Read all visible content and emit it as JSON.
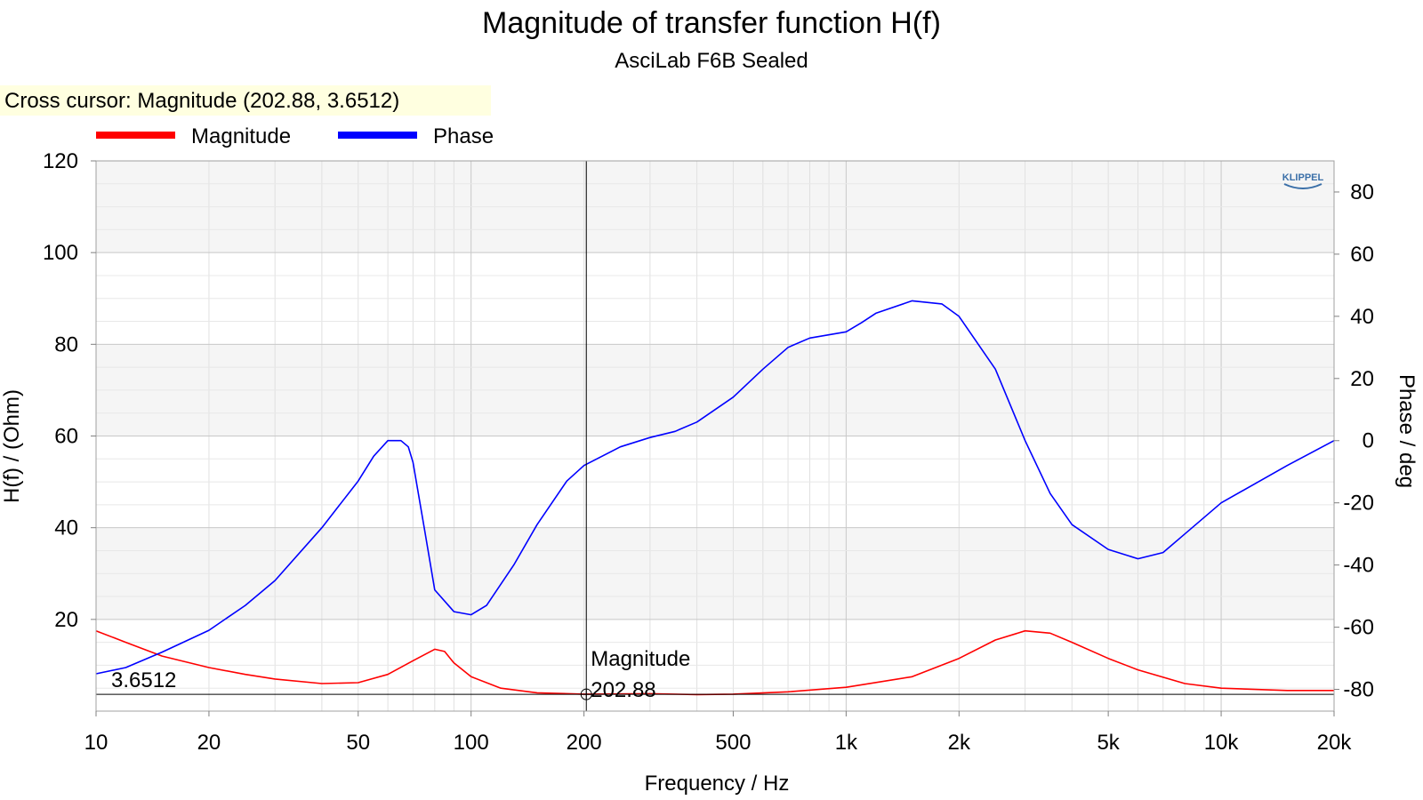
{
  "chart_data": {
    "type": "line",
    "title": "Magnitude of transfer function H(f)",
    "subtitle": "AsciLab F6B Sealed",
    "xlabel": "Frequency / Hz",
    "ylabel": "H(f) / (Ohm)",
    "y2label": "Phase / deg",
    "x_scale": "log",
    "xlim": [
      10,
      20000
    ],
    "ylim": [
      0,
      120
    ],
    "y2lim": [
      -87,
      90
    ],
    "x_ticks": [
      10,
      20,
      50,
      100,
      200,
      500,
      1000,
      2000,
      5000,
      10000,
      20000
    ],
    "x_tick_labels": [
      "10",
      "20",
      "50",
      "100",
      "200",
      "500",
      "1k",
      "2k",
      "5k",
      "10k",
      "20k"
    ],
    "y_ticks": [
      20,
      40,
      60,
      80,
      100,
      120
    ],
    "y_tick_labels": [
      "20",
      "40",
      "60",
      "80",
      "100",
      "120"
    ],
    "y2_ticks": [
      80,
      60,
      40,
      20,
      0,
      -20,
      -40,
      -60,
      -80
    ],
    "y2_tick_labels": [
      "80",
      "60",
      "40",
      "20",
      "0",
      "-20",
      "-40",
      "-60",
      "-80"
    ],
    "grid": true,
    "legend_position": "top-left",
    "series": [
      {
        "name": "Magnitude",
        "color": "#ff0000",
        "axis": "left",
        "x": [
          10,
          12,
          15,
          20,
          25,
          30,
          40,
          50,
          60,
          70,
          80,
          85,
          90,
          100,
          120,
          150,
          200,
          300,
          400,
          500,
          700,
          1000,
          1500,
          2000,
          2500,
          3000,
          3500,
          4000,
          5000,
          6000,
          8000,
          10000,
          15000,
          20000
        ],
        "y": [
          17.5,
          15,
          12,
          9.5,
          8,
          7,
          6,
          6.2,
          8,
          11,
          13.5,
          13,
          10.5,
          7.5,
          5,
          4,
          3.7,
          3.8,
          3.6,
          3.7,
          4.2,
          5.2,
          7.5,
          11.5,
          15.5,
          17.5,
          17,
          15,
          11.5,
          9,
          6,
          5,
          4.5,
          4.5
        ]
      },
      {
        "name": "Phase",
        "color": "#0000ff",
        "axis": "right",
        "x": [
          10,
          12,
          15,
          20,
          25,
          30,
          40,
          50,
          55,
          60,
          65,
          68,
          70,
          75,
          80,
          90,
          100,
          110,
          130,
          150,
          180,
          200,
          250,
          300,
          350,
          400,
          500,
          600,
          700,
          800,
          1000,
          1100,
          1200,
          1500,
          1800,
          2000,
          2500,
          3000,
          3500,
          4000,
          5000,
          6000,
          7000,
          8000,
          10000,
          15000,
          20000
        ],
        "y": [
          -75,
          -73,
          -68,
          -61,
          -53,
          -45,
          -28,
          -13,
          -5,
          0,
          0,
          -2,
          -7,
          -28,
          -48,
          -55,
          -56,
          -53,
          -40,
          -27,
          -13,
          -8,
          -2,
          1,
          3,
          6,
          14,
          23,
          30,
          33,
          35,
          38,
          41,
          45,
          44,
          40,
          23,
          0,
          -17,
          -27,
          -35,
          -38,
          -36,
          -30,
          -20,
          -8,
          0
        ]
      }
    ],
    "cursor": {
      "label": "Cross cursor: Magnitude (202.88, 3.6512)",
      "x": 202.88,
      "y": 3.6512,
      "series_label": "Magnitude",
      "x_text": "202.88",
      "y_text": "3.6512"
    },
    "logo_text": "KLIPPEL"
  },
  "colors": {
    "magnitude": "#ff0000",
    "phase": "#0000ff",
    "band": "#f5f5f5",
    "grid": "#d8d8d8",
    "cursor_box": "#ffffe0"
  }
}
